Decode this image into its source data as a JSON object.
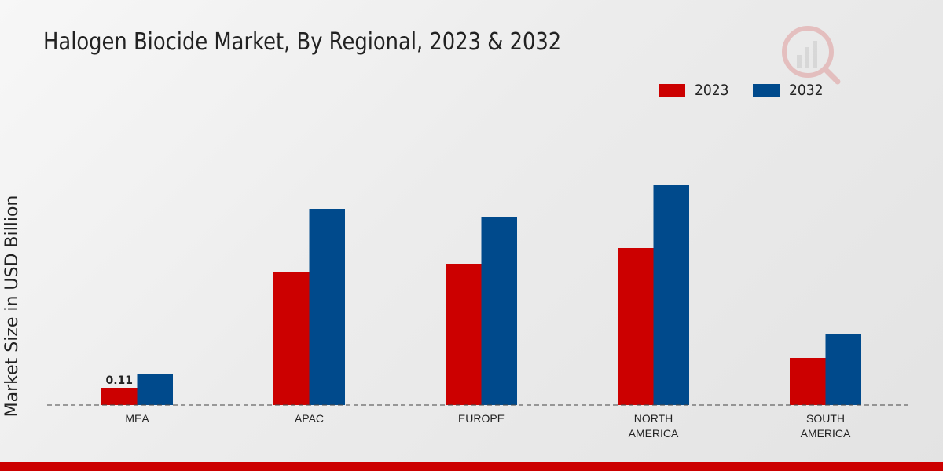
{
  "chart_data": {
    "type": "bar",
    "title": "Halogen Biocide Market, By Regional, 2023 & 2032",
    "xlabel": "",
    "ylabel": "Market Size in USD Billion",
    "ylim": [
      0,
      1.6
    ],
    "categories": [
      [
        "MEA"
      ],
      [
        "APAC"
      ],
      [
        "EUROPE"
      ],
      [
        "NORTH",
        "AMERICA"
      ],
      [
        "SOUTH",
        "AMERICA"
      ]
    ],
    "series": [
      {
        "name": "2023",
        "color": "#cc0000",
        "values": [
          0.11,
          0.85,
          0.9,
          1.0,
          0.3
        ]
      },
      {
        "name": "2032",
        "color": "#004a8c",
        "values": [
          0.2,
          1.25,
          1.2,
          1.4,
          0.45
        ]
      }
    ],
    "data_labels": [
      {
        "series": 0,
        "index": 0,
        "text": "0.11"
      }
    ],
    "legend_position": "top-right",
    "grid": false
  }
}
